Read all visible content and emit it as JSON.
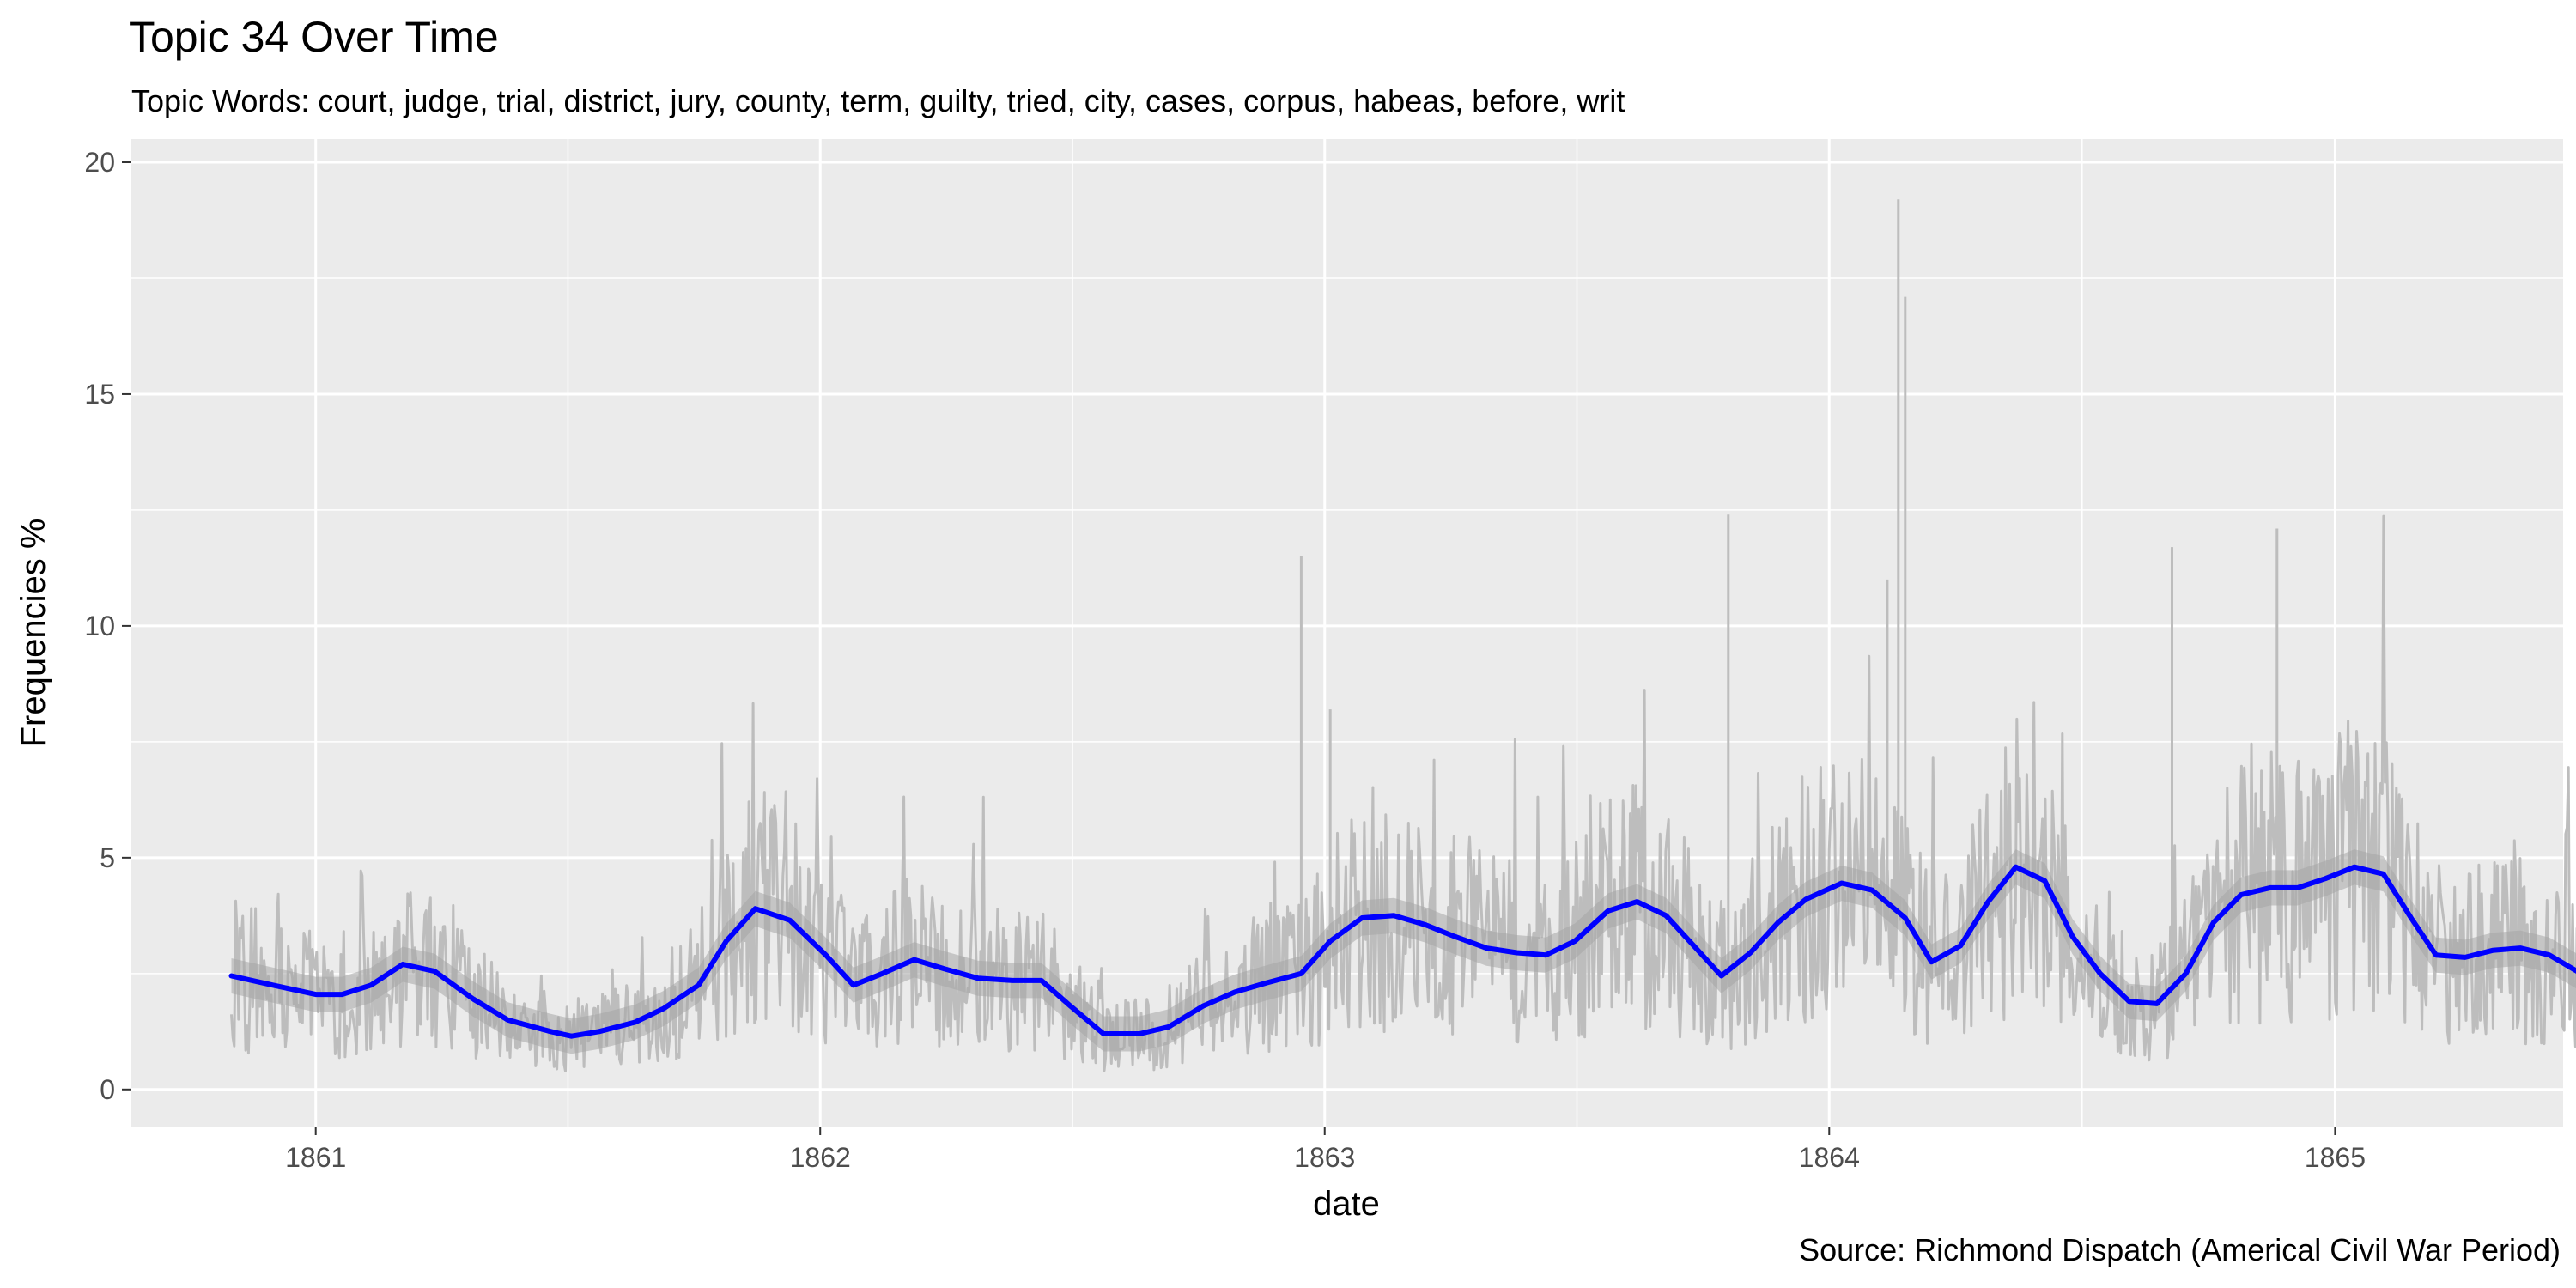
{
  "chart_data": {
    "type": "line",
    "title": "Topic 34 Over Time",
    "subtitle": "Topic Words: court, judge, trial, district, jury, county, term, guilty, tried, city, cases, corpus, habeas, before, writ",
    "caption": "Source: Richmond Dispatch (Americal Civil War Period)",
    "xlabel": "date",
    "ylabel": "Frequencies %",
    "x_ticks": [
      "1861",
      "1862",
      "1863",
      "1864",
      "1865"
    ],
    "y_ticks": [
      "0",
      "5",
      "10",
      "15",
      "20"
    ],
    "xlim": [
      "1860-08-20",
      "1865-06-15"
    ],
    "ylim": [
      -0.8,
      20.5
    ],
    "grid": true,
    "background": "#ebebeb",
    "colors": {
      "raw": "#bdbdbd",
      "smooth": "#0000ff",
      "ribbon": "#a6a6a6"
    },
    "series": [
      {
        "values": [
          [
            "1860-11-01",
            2.45
          ],
          [
            "1860-12-01",
            2.25
          ],
          [
            "1861-01-01",
            2.05
          ],
          [
            "1861-01-20",
            2.05
          ],
          [
            "1861-02-10",
            2.25
          ],
          [
            "1861-03-05",
            2.7
          ],
          [
            "1861-03-28",
            2.55
          ],
          [
            "1861-04-25",
            1.95
          ],
          [
            "1861-05-20",
            1.5
          ],
          [
            "1861-06-20",
            1.25
          ],
          [
            "1861-07-05",
            1.15
          ],
          [
            "1861-07-25",
            1.25
          ],
          [
            "1861-08-20",
            1.45
          ],
          [
            "1861-09-10",
            1.75
          ],
          [
            "1861-10-05",
            2.25
          ],
          [
            "1861-10-25",
            3.2
          ],
          [
            "1861-11-15",
            3.9
          ],
          [
            "1861-12-10",
            3.65
          ],
          [
            "1862-01-05",
            2.9
          ],
          [
            "1862-01-25",
            2.25
          ],
          [
            "1862-02-15",
            2.5
          ],
          [
            "1862-03-10",
            2.8
          ],
          [
            "1862-04-01",
            2.6
          ],
          [
            "1862-04-25",
            2.4
          ],
          [
            "1862-05-20",
            2.35
          ],
          [
            "1862-06-10",
            2.35
          ],
          [
            "1862-07-01",
            1.8
          ],
          [
            "1862-07-25",
            1.2
          ],
          [
            "1862-08-20",
            1.2
          ],
          [
            "1862-09-10",
            1.35
          ],
          [
            "1862-10-05",
            1.8
          ],
          [
            "1862-10-28",
            2.1
          ],
          [
            "1862-11-20",
            2.3
          ],
          [
            "1862-12-15",
            2.5
          ],
          [
            "1863-01-05",
            3.2
          ],
          [
            "1863-01-28",
            3.7
          ],
          [
            "1863-02-20",
            3.75
          ],
          [
            "1863-03-15",
            3.55
          ],
          [
            "1863-04-05",
            3.3
          ],
          [
            "1863-04-28",
            3.05
          ],
          [
            "1863-05-20",
            2.95
          ],
          [
            "1863-06-10",
            2.9
          ],
          [
            "1863-07-01",
            3.2
          ],
          [
            "1863-07-25",
            3.85
          ],
          [
            "1863-08-15",
            4.05
          ],
          [
            "1863-09-05",
            3.75
          ],
          [
            "1863-09-25",
            3.1
          ],
          [
            "1863-10-15",
            2.45
          ],
          [
            "1863-11-05",
            2.95
          ],
          [
            "1863-11-25",
            3.6
          ],
          [
            "1863-12-15",
            4.1
          ],
          [
            "1864-01-10",
            4.45
          ],
          [
            "1864-02-01",
            4.3
          ],
          [
            "1864-02-25",
            3.7
          ],
          [
            "1864-03-15",
            2.75
          ],
          [
            "1864-04-05",
            3.1
          ],
          [
            "1864-04-25",
            4.05
          ],
          [
            "1864-05-15",
            4.8
          ],
          [
            "1864-06-05",
            4.5
          ],
          [
            "1864-06-25",
            3.3
          ],
          [
            "1864-07-15",
            2.5
          ],
          [
            "1864-08-05",
            1.9
          ],
          [
            "1864-08-25",
            1.85
          ],
          [
            "1864-09-15",
            2.5
          ],
          [
            "1864-10-05",
            3.6
          ],
          [
            "1864-10-25",
            4.2
          ],
          [
            "1864-11-15",
            4.35
          ],
          [
            "1864-12-05",
            4.35
          ],
          [
            "1864-12-25",
            4.55
          ],
          [
            "1865-01-15",
            4.8
          ],
          [
            "1865-02-05",
            4.65
          ],
          [
            "1865-02-25",
            3.7
          ],
          [
            "1865-03-15",
            2.9
          ],
          [
            "1865-04-05",
            2.85
          ],
          [
            "1865-04-25",
            3.0
          ],
          [
            "1865-05-15",
            3.05
          ],
          [
            "1865-06-05",
            2.9
          ],
          [
            "1865-06-25",
            2.55
          ]
        ]
      }
    ]
  }
}
